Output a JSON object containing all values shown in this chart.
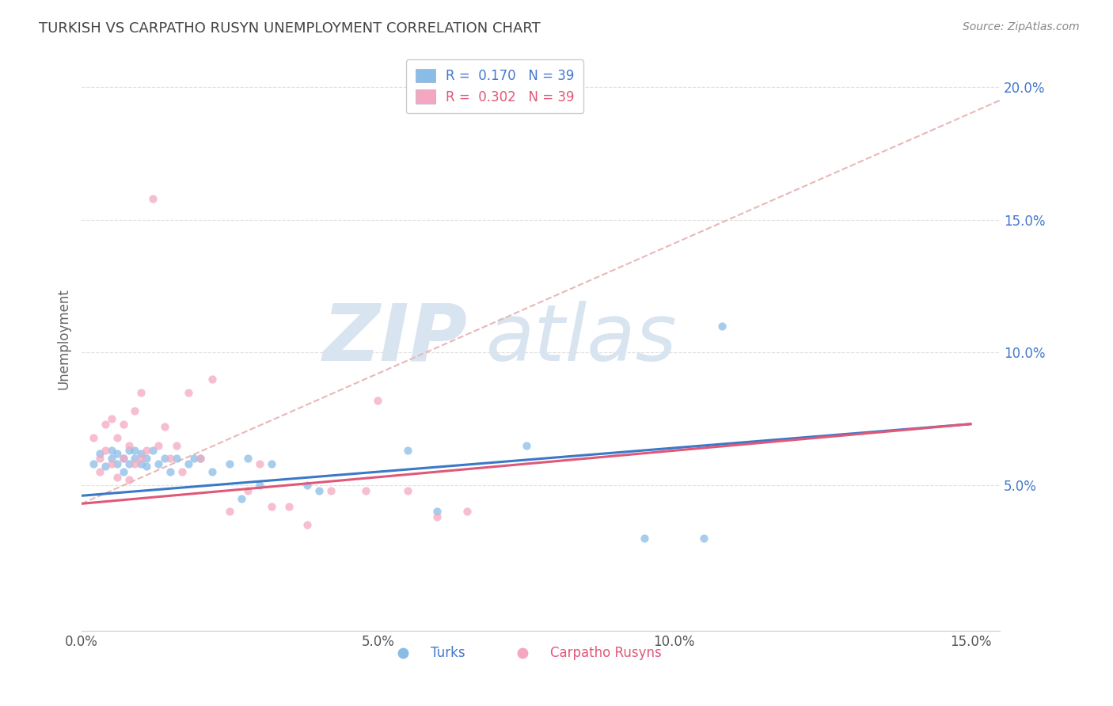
{
  "title": "TURKISH VS CARPATHO RUSYN UNEMPLOYMENT CORRELATION CHART",
  "source": "Source: ZipAtlas.com",
  "ylabel": "Unemployment",
  "xlim": [
    0.0,
    0.155
  ],
  "ylim": [
    -0.005,
    0.215
  ],
  "xtick_labels": [
    "0.0%",
    "5.0%",
    "10.0%",
    "15.0%"
  ],
  "xtick_vals": [
    0.0,
    0.05,
    0.1,
    0.15
  ],
  "ytick_labels": [
    "5.0%",
    "10.0%",
    "15.0%",
    "20.0%"
  ],
  "ytick_vals": [
    0.05,
    0.1,
    0.15,
    0.2
  ],
  "legend_label_turks": "R =  0.170   N = 39",
  "legend_label_rusyns": "R =  0.302   N = 39",
  "turks_scatter_x": [
    0.002,
    0.003,
    0.004,
    0.005,
    0.005,
    0.006,
    0.006,
    0.007,
    0.007,
    0.008,
    0.008,
    0.009,
    0.009,
    0.01,
    0.01,
    0.011,
    0.011,
    0.012,
    0.013,
    0.014,
    0.015,
    0.016,
    0.018,
    0.019,
    0.02,
    0.022,
    0.025,
    0.027,
    0.028,
    0.03,
    0.032,
    0.038,
    0.04,
    0.055,
    0.06,
    0.075,
    0.095,
    0.105,
    0.108
  ],
  "turks_scatter_y": [
    0.058,
    0.062,
    0.057,
    0.06,
    0.063,
    0.058,
    0.062,
    0.06,
    0.055,
    0.063,
    0.058,
    0.06,
    0.063,
    0.058,
    0.062,
    0.057,
    0.06,
    0.063,
    0.058,
    0.06,
    0.055,
    0.06,
    0.058,
    0.06,
    0.06,
    0.055,
    0.058,
    0.045,
    0.06,
    0.05,
    0.058,
    0.05,
    0.048,
    0.063,
    0.04,
    0.065,
    0.03,
    0.03,
    0.11
  ],
  "rusyn_scatter_x": [
    0.002,
    0.003,
    0.003,
    0.004,
    0.004,
    0.005,
    0.005,
    0.006,
    0.006,
    0.007,
    0.007,
    0.008,
    0.008,
    0.009,
    0.009,
    0.01,
    0.01,
    0.011,
    0.012,
    0.013,
    0.014,
    0.015,
    0.016,
    0.017,
    0.018,
    0.02,
    0.022,
    0.025,
    0.028,
    0.03,
    0.032,
    0.035,
    0.038,
    0.042,
    0.048,
    0.05,
    0.055,
    0.06,
    0.065
  ],
  "rusyn_scatter_y": [
    0.068,
    0.06,
    0.055,
    0.073,
    0.063,
    0.075,
    0.058,
    0.068,
    0.053,
    0.073,
    0.06,
    0.065,
    0.052,
    0.078,
    0.058,
    0.085,
    0.06,
    0.063,
    0.158,
    0.065,
    0.072,
    0.06,
    0.065,
    0.055,
    0.085,
    0.06,
    0.09,
    0.04,
    0.048,
    0.058,
    0.042,
    0.042,
    0.035,
    0.048,
    0.048,
    0.082,
    0.048,
    0.038,
    0.04
  ],
  "turk_line_x": [
    0.0,
    0.15
  ],
  "turk_line_y": [
    0.046,
    0.073
  ],
  "rusyn_line_x": [
    0.0,
    0.15
  ],
  "rusyn_line_y": [
    0.043,
    0.073
  ],
  "trendline_x": [
    0.0,
    0.155
  ],
  "trendline_y": [
    0.043,
    0.195
  ],
  "scatter_color_turks": "#89bde8",
  "scatter_color_rusyns": "#f4a8c0",
  "line_color_turks": "#3b78c8",
  "line_color_rusyns": "#e05878",
  "trendline_color": "#e8b8b8",
  "background_color": "#ffffff",
  "watermark_color": "#d8e4f0",
  "grid_color": "#e0e0e0"
}
